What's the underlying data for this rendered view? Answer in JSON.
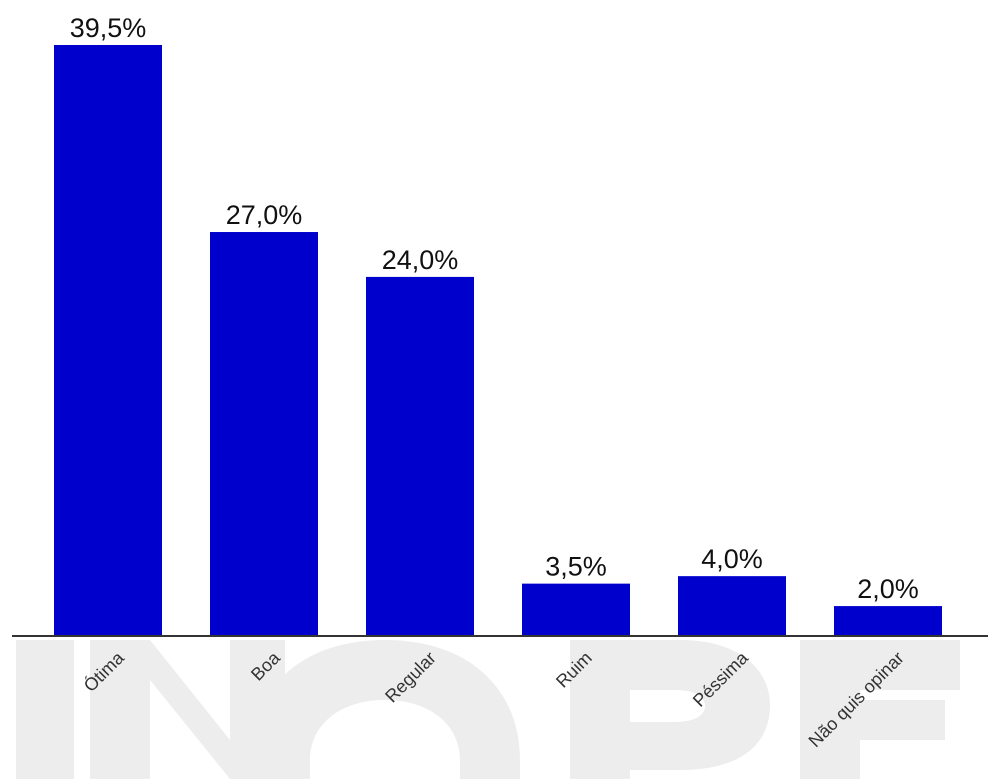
{
  "chart_data": {
    "type": "bar",
    "categories": [
      "Ótima",
      "Boa",
      "Regular",
      "Ruim",
      "Péssima",
      "Não quis opinar"
    ],
    "values": [
      39.5,
      27.0,
      24.0,
      3.5,
      4.0,
      2.0
    ],
    "value_labels": [
      "39,5%",
      "27,0%",
      "24,0%",
      "3,5%",
      "4,0%",
      "2,0%"
    ],
    "title": "",
    "xlabel": "",
    "ylabel": "",
    "ylim": [
      0,
      40
    ],
    "grid": false,
    "legend": "none",
    "bar_color": "#0000cc",
    "axis_color": "#333333",
    "x_tick_rotation_deg": -45
  },
  "watermark": {
    "text": "INOPE",
    "color": "#ededed"
  }
}
